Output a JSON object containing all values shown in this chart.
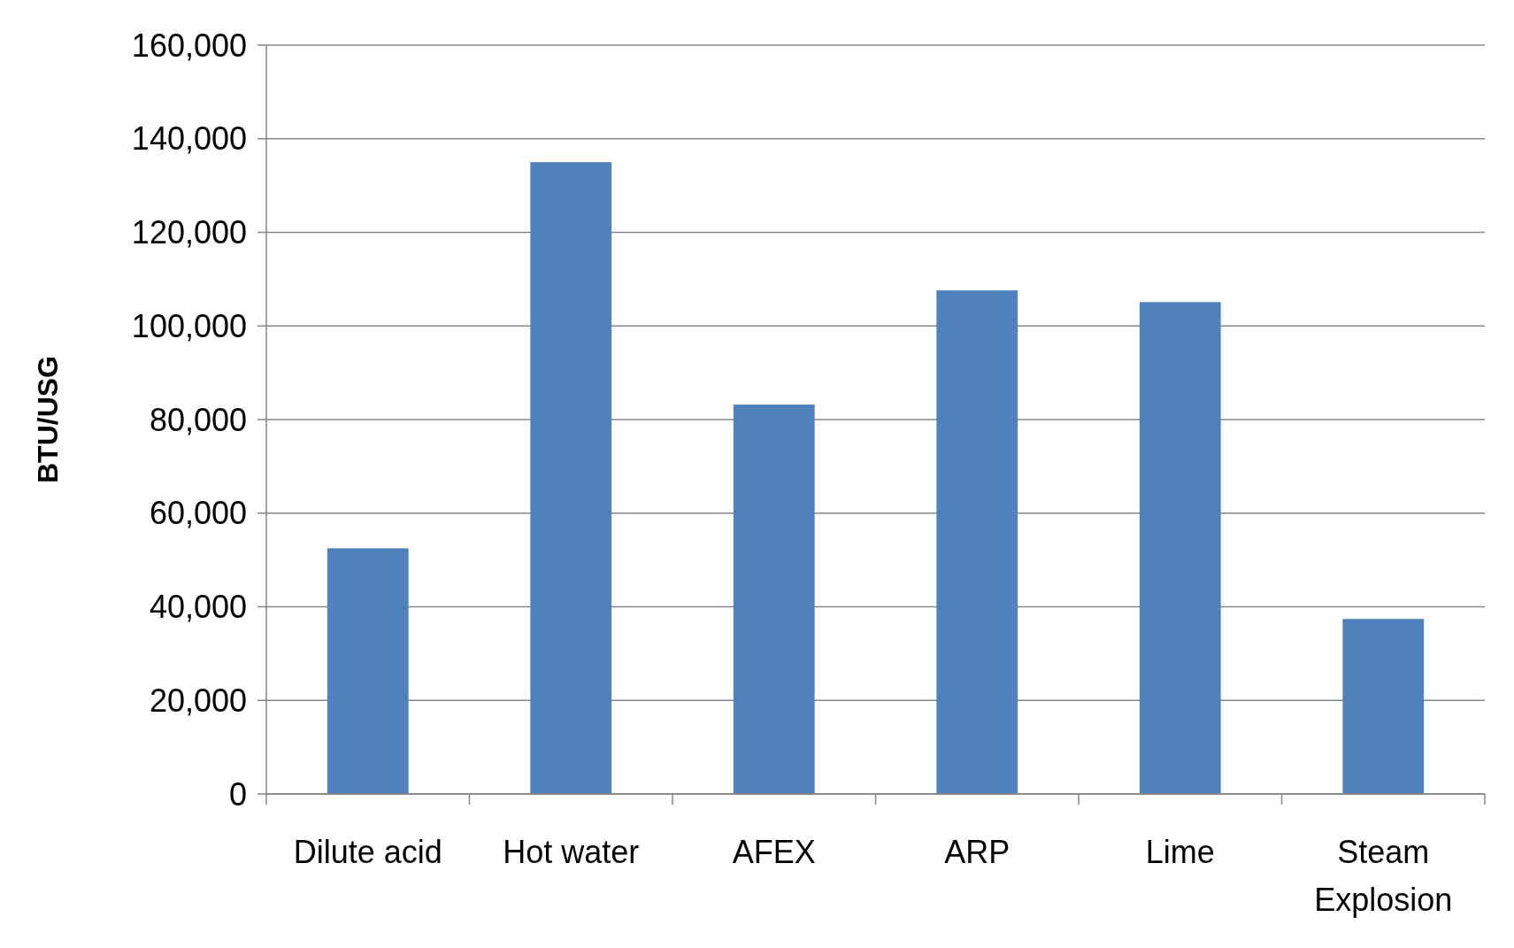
{
  "chart_data": {
    "type": "bar",
    "ylabel": "BTU/USG",
    "categories": [
      "Dilute acid",
      "Hot water",
      "AFEX",
      "ARP",
      "Lime",
      "Steam Explosion"
    ],
    "values": [
      52500,
      135000,
      83200,
      107600,
      105100,
      37400
    ],
    "color": "#4f81bd",
    "ylim": [
      0,
      160000
    ],
    "yticks": [
      {
        "value": 0,
        "label": "0"
      },
      {
        "value": 20000,
        "label": "20,000"
      },
      {
        "value": 40000,
        "label": "40,000"
      },
      {
        "value": 60000,
        "label": "60,000"
      },
      {
        "value": 80000,
        "label": "80,000"
      },
      {
        "value": 100000,
        "label": "100,000"
      },
      {
        "value": 120000,
        "label": "120,000"
      },
      {
        "value": 140000,
        "label": "140,000"
      },
      {
        "value": 160000,
        "label": "160,000"
      }
    ],
    "grid": "y"
  }
}
